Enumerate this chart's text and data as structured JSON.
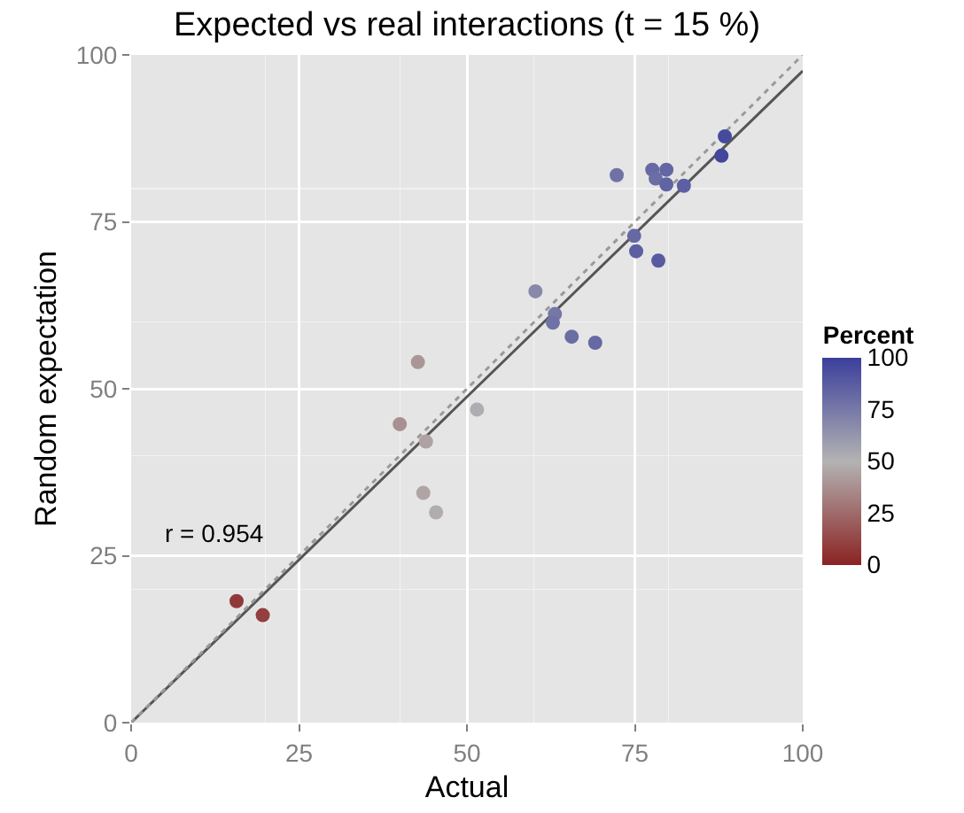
{
  "chart_data": {
    "type": "scatter",
    "title": "Expected vs real interactions (t = 15 %)",
    "xlabel": "Actual",
    "ylabel": "Random expectation",
    "clabel": "Percent",
    "xlim": [
      0,
      100
    ],
    "ylim": [
      0,
      100
    ],
    "xticks": [
      0,
      25,
      50,
      75,
      100
    ],
    "yticks": [
      0,
      25,
      50,
      75,
      100
    ],
    "clim": [
      0,
      100
    ],
    "cticks": [
      0,
      25,
      50,
      75,
      100
    ],
    "grid": true,
    "marker": "circle",
    "annotations": [
      "r = 0.954"
    ],
    "series": [
      {
        "x": [
          88.4,
          87.9,
          72.3,
          77.6,
          79.7,
          78.1,
          79.7,
          82.3,
          74.9,
          75.2,
          78.5,
          60.2,
          63.1,
          62.8,
          65.6,
          69.1,
          42.7,
          51.5,
          40.0,
          43.9,
          43.5,
          45.4,
          15.7,
          19.6
        ],
        "values": [
          87.8,
          84.9,
          82.0,
          82.8,
          82.8,
          81.5,
          80.6,
          80.4,
          72.9,
          70.6,
          69.2,
          64.6,
          61.2,
          59.9,
          57.8,
          56.9,
          54.0,
          46.9,
          44.7,
          42.1,
          34.4,
          31.5,
          18.2,
          16.1
        ],
        "cvalues": [
          95,
          97,
          78,
          82,
          83,
          80,
          84,
          86,
          82,
          86,
          88,
          68,
          76,
          78,
          80,
          82,
          40,
          52,
          38,
          44,
          45,
          48,
          8,
          10
        ],
        "colors": [
          "#474b9d",
          "#42469c",
          "#7072a6",
          "#6669a4",
          "#6466a3",
          "#6b6da5",
          "#6164a3",
          "#5d5fa2",
          "#6669a4",
          "#5d5fa2",
          "#585ba1",
          "#8889aa",
          "#7577a7",
          "#7072a6",
          "#6b6da5",
          "#6669a4",
          "#ab9696",
          "#aeaeb2",
          "#a99090",
          "#aea2a2",
          "#afa5a5",
          "#b1adad",
          "#913939",
          "#933f3f"
        ]
      },
      {
        "type": "line",
        "color": "#555555",
        "line_style": "solid",
        "marker": "none",
        "x": [
          0,
          100
        ],
        "values": [
          0,
          97.6
        ]
      },
      {
        "type": "line",
        "color": "#999999",
        "line_style": "dotted",
        "marker": "none",
        "x": [
          0,
          100
        ],
        "values": [
          0,
          100
        ]
      }
    ]
  }
}
